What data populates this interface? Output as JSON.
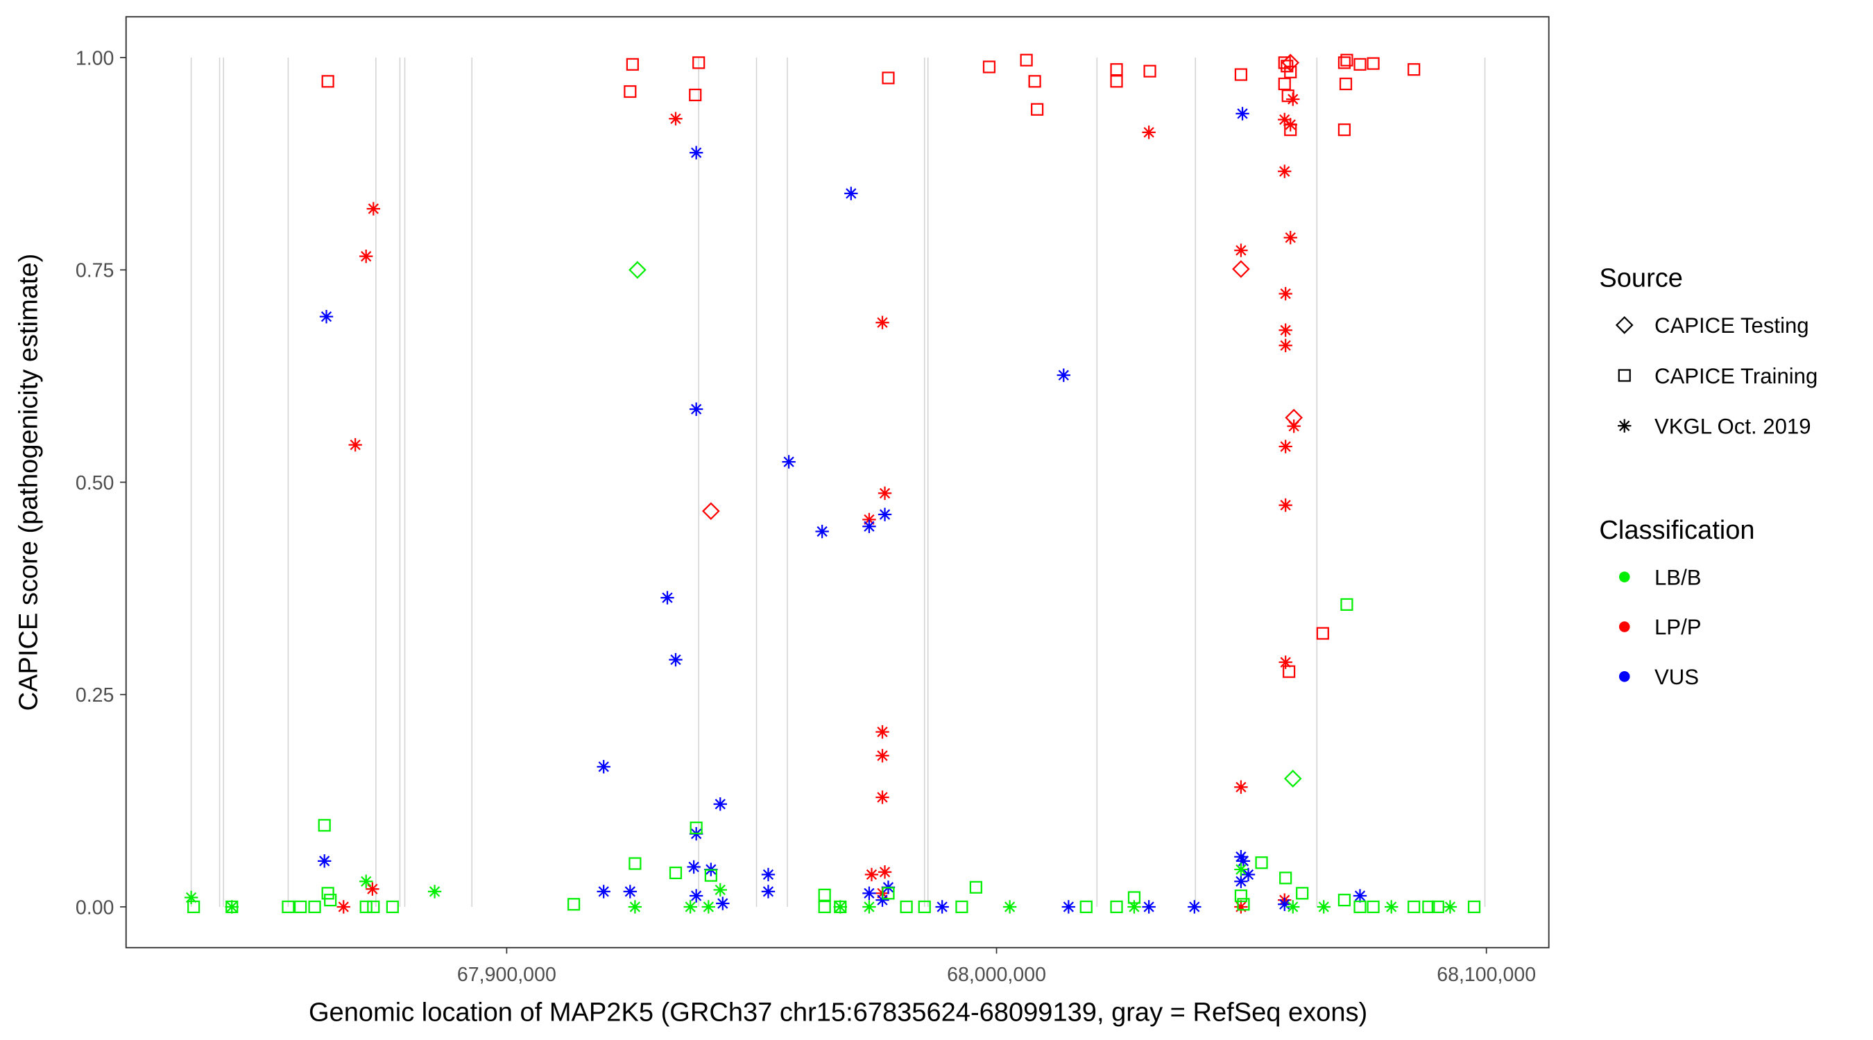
{
  "chart_data": {
    "type": "scatter",
    "xlabel": "Genomic location of MAP2K5 (GRCh37 chr15:67835624-68099139, gray = RefSeq exons)",
    "ylabel": "CAPICE score (pathogenicity estimate)",
    "xlim": [
      67822000,
      68112000
    ],
    "ylim": [
      -0.046,
      1.05
    ],
    "x_ticks": [
      67900000,
      68000000,
      68100000
    ],
    "x_tick_labels": [
      "67,900,000",
      "68,000,000",
      "68,100,000"
    ],
    "y_ticks": [
      0,
      0.25,
      0.5,
      0.75,
      1.0
    ],
    "y_tick_labels": [
      "0.00",
      "0.25",
      "0.50",
      "0.75",
      "1.00"
    ],
    "grid": false,
    "exon_lines_color": "#d3d3d3",
    "exon_positions": [
      67835600,
      67841400,
      67842200,
      67855400,
      67873300,
      67878200,
      67879200,
      67892900,
      67939200,
      67951000,
      67957300,
      67985300,
      67986000,
      68020500,
      68040600,
      68065400,
      68099700
    ],
    "legend": {
      "placement": "right",
      "source": {
        "title": "Source",
        "items": [
          {
            "label": "CAPICE Testing",
            "shape": "diamond"
          },
          {
            "label": "CAPICE Training",
            "shape": "square"
          },
          {
            "label": "VKGL Oct. 2019",
            "shape": "asterisk"
          }
        ]
      },
      "classification": {
        "title": "Classification",
        "items": [
          {
            "label": "LB/B",
            "color": "#00ee00"
          },
          {
            "label": "LP/P",
            "color": "#ff0000"
          },
          {
            "label": "VUS",
            "color": "#0000ff"
          }
        ]
      }
    },
    "series": [
      {
        "source": "CAPICE Training",
        "classification": "LP/P",
        "points": [
          [
            67863500,
            0.972
          ],
          [
            67925700,
            0.992
          ],
          [
            67925200,
            0.96
          ],
          [
            67939200,
            0.994
          ],
          [
            67938500,
            0.956
          ],
          [
            67977900,
            0.976
          ],
          [
            67998500,
            0.989
          ],
          [
            68006100,
            0.997
          ],
          [
            68007800,
            0.972
          ],
          [
            68008300,
            0.939
          ],
          [
            68024500,
            0.986
          ],
          [
            68024500,
            0.972
          ],
          [
            68031300,
            0.984
          ],
          [
            68049900,
            0.98
          ],
          [
            68058800,
            0.994
          ],
          [
            68059300,
            0.99
          ],
          [
            68060000,
            0.983
          ],
          [
            68059500,
            0.955
          ],
          [
            68060000,
            0.915
          ],
          [
            68071000,
            0.994
          ],
          [
            68071500,
            0.997
          ],
          [
            68071300,
            0.969
          ],
          [
            68074200,
            0.992
          ],
          [
            68076900,
            0.993
          ],
          [
            68085200,
            0.986
          ],
          [
            68071000,
            0.915
          ],
          [
            68066600,
            0.322
          ],
          [
            68059700,
            0.277
          ],
          [
            68058800,
            0.969
          ]
        ]
      },
      {
        "source": "CAPICE Testing",
        "classification": "LP/P",
        "points": [
          [
            67941700,
            0.466
          ],
          [
            68049900,
            0.751
          ],
          [
            68060700,
            0.576
          ],
          [
            68060000,
            0.994
          ]
        ]
      },
      {
        "source": "VKGL Oct. 2019",
        "classification": "LP/P",
        "points": [
          [
            67872800,
            0.822
          ],
          [
            67871300,
            0.766
          ],
          [
            67869100,
            0.544
          ],
          [
            67872600,
            0.021
          ],
          [
            67866700,
            0.0
          ],
          [
            67934500,
            0.928
          ],
          [
            68031100,
            0.912
          ],
          [
            67976700,
            0.688
          ],
          [
            67977200,
            0.487
          ],
          [
            67974000,
            0.456
          ],
          [
            67976700,
            0.206
          ],
          [
            67976700,
            0.178
          ],
          [
            67976700,
            0.129
          ],
          [
            67974500,
            0.038
          ],
          [
            67977200,
            0.041
          ],
          [
            67976700,
            0.016
          ],
          [
            68049900,
            0.773
          ],
          [
            68049900,
            0.141
          ],
          [
            68049900,
            0.0
          ],
          [
            68058800,
            0.927
          ],
          [
            68060000,
            0.921
          ],
          [
            68060500,
            0.951
          ],
          [
            68058800,
            0.866
          ],
          [
            68060000,
            0.788
          ],
          [
            68059000,
            0.722
          ],
          [
            68059000,
            0.679
          ],
          [
            68059000,
            0.661
          ],
          [
            68059000,
            0.542
          ],
          [
            68060700,
            0.566
          ],
          [
            68059000,
            0.473
          ],
          [
            68059000,
            0.288
          ],
          [
            68058800,
            0.008
          ]
        ]
      },
      {
        "source": "VKGL Oct. 2019",
        "classification": "VUS",
        "points": [
          [
            67863200,
            0.695
          ],
          [
            67862800,
            0.054
          ],
          [
            67938700,
            0.888
          ],
          [
            67938700,
            0.586
          ],
          [
            67932800,
            0.364
          ],
          [
            67934500,
            0.291
          ],
          [
            67919800,
            0.165
          ],
          [
            67938700,
            0.086
          ],
          [
            67943600,
            0.121
          ],
          [
            67919800,
            0.018
          ],
          [
            67925200,
            0.018
          ],
          [
            67938200,
            0.047
          ],
          [
            67941700,
            0.044
          ],
          [
            67953400,
            0.038
          ],
          [
            67953400,
            0.018
          ],
          [
            67938700,
            0.013
          ],
          [
            67944100,
            0.004
          ],
          [
            67957600,
            0.524
          ],
          [
            67964400,
            0.442
          ],
          [
            67970300,
            0.84
          ],
          [
            67974000,
            0.448
          ],
          [
            67977200,
            0.462
          ],
          [
            67974000,
            0.016
          ],
          [
            67976700,
            0.008
          ],
          [
            67977900,
            0.023
          ],
          [
            67988900,
            0.0
          ],
          [
            68013700,
            0.626
          ],
          [
            68014700,
            0.0
          ],
          [
            68031100,
            0.0
          ],
          [
            68040400,
            0.0
          ],
          [
            68050200,
            0.934
          ],
          [
            68049900,
            0.059
          ],
          [
            68050400,
            0.054
          ],
          [
            68049900,
            0.03
          ],
          [
            68051400,
            0.038
          ],
          [
            68074200,
            0.013
          ],
          [
            68058800,
            0.003
          ]
        ]
      },
      {
        "source": "CAPICE Testing",
        "classification": "LB/B",
        "points": [
          [
            67926700,
            0.75
          ],
          [
            68060500,
            0.151
          ]
        ]
      },
      {
        "source": "CAPICE Training",
        "classification": "LB/B",
        "points": [
          [
            67836100,
            0.0
          ],
          [
            67843900,
            0.0
          ],
          [
            67855400,
            0.0
          ],
          [
            67857900,
            0.0
          ],
          [
            67860800,
            0.0
          ],
          [
            67862800,
            0.096
          ],
          [
            67863500,
            0.016
          ],
          [
            67864000,
            0.008
          ],
          [
            67871300,
            0.0
          ],
          [
            67872800,
            0.0
          ],
          [
            67876700,
            0.0
          ],
          [
            67913700,
            0.003
          ],
          [
            67926200,
            0.051
          ],
          [
            67934500,
            0.04
          ],
          [
            67938700,
            0.093
          ],
          [
            67941700,
            0.037
          ],
          [
            67964900,
            0.014
          ],
          [
            67964900,
            0.0
          ],
          [
            67968100,
            0.0
          ],
          [
            67977900,
            0.016
          ],
          [
            67981600,
            0.0
          ],
          [
            67985300,
            0.0
          ],
          [
            67992900,
            0.0
          ],
          [
            67995800,
            0.023
          ],
          [
            68018300,
            0.0
          ],
          [
            68024500,
            0.0
          ],
          [
            68028100,
            0.011
          ],
          [
            68050400,
            0.003
          ],
          [
            68054100,
            0.052
          ],
          [
            68059000,
            0.034
          ],
          [
            68062400,
            0.016
          ],
          [
            68071500,
            0.356
          ],
          [
            68071000,
            0.008
          ],
          [
            68074200,
            0.0
          ],
          [
            68076900,
            0.0
          ],
          [
            68085200,
            0.0
          ],
          [
            68088200,
            0.0
          ],
          [
            68090100,
            0.0
          ],
          [
            68097500,
            0.0
          ],
          [
            68049900,
            0.013
          ]
        ]
      },
      {
        "source": "VKGL Oct. 2019",
        "classification": "LB/B",
        "points": [
          [
            67835600,
            0.011
          ],
          [
            67843900,
            0.0
          ],
          [
            67871300,
            0.03
          ],
          [
            67885300,
            0.018
          ],
          [
            67926200,
            0.0
          ],
          [
            67937500,
            0.0
          ],
          [
            67941200,
            0.0
          ],
          [
            67943600,
            0.02
          ],
          [
            67968100,
            0.0
          ],
          [
            67974000,
            0.0
          ],
          [
            68002700,
            0.0
          ],
          [
            68028100,
            0.0
          ],
          [
            68049900,
            0.044
          ],
          [
            68060500,
            0.0
          ],
          [
            68066800,
            0.0
          ],
          [
            68080600,
            0.0
          ],
          [
            68092600,
            0.0
          ]
        ]
      }
    ]
  }
}
